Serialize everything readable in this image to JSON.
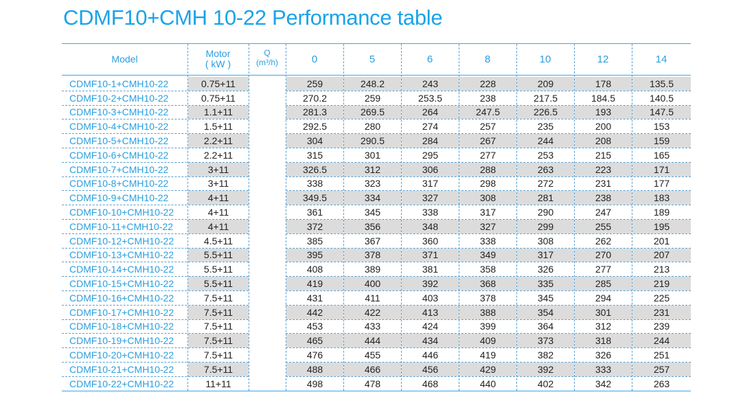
{
  "header": {
    "title": "CDMF10+CMH 10-22 Performance table"
  },
  "table": {
    "columns": {
      "model": "Model",
      "motor": [
        "Motor",
        "( kW )"
      ],
      "q": [
        "Q",
        "(m³/h)"
      ],
      "flows": [
        "0",
        "5",
        "6",
        "8",
        "10",
        "12",
        "14"
      ]
    },
    "rows": [
      [
        "CDMF10-1+CMH10-22",
        "0.75+11",
        "259",
        "248.2",
        "243",
        "228",
        "209",
        "178",
        "135.5"
      ],
      [
        "CDMF10-2+CMH10-22",
        "0.75+11",
        "270.2",
        "259",
        "253.5",
        "238",
        "217.5",
        "184.5",
        "140.5"
      ],
      [
        "CDMF10-3+CMH10-22",
        "1.1+11",
        "281.3",
        "269.5",
        "264",
        "247.5",
        "226.5",
        "193",
        "147.5"
      ],
      [
        "CDMF10-4+CMH10-22",
        "1.5+11",
        "292.5",
        "280",
        "274",
        "257",
        "235",
        "200",
        "153"
      ],
      [
        "CDMF10-5+CMH10-22",
        "2.2+11",
        "304",
        "290.5",
        "284",
        "267",
        "244",
        "208",
        "159"
      ],
      [
        "CDMF10-6+CMH10-22",
        "2.2+11",
        "315",
        "301",
        "295",
        "277",
        "253",
        "215",
        "165"
      ],
      [
        "CDMF10-7+CMH10-22",
        "3+11",
        "326.5",
        "312",
        "306",
        "288",
        "263",
        "223",
        "171"
      ],
      [
        "CDMF10-8+CMH10-22",
        "3+11",
        "338",
        "323",
        "317",
        "298",
        "272",
        "231",
        "177"
      ],
      [
        "CDMF10-9+CMH10-22",
        "4+11",
        "349.5",
        "334",
        "327",
        "308",
        "281",
        "238",
        "183"
      ],
      [
        "CDMF10-10+CMH10-22",
        "4+11",
        "361",
        "345",
        "338",
        "317",
        "290",
        "247",
        "189"
      ],
      [
        "CDMF10-11+CMH10-22",
        "4+11",
        "372",
        "356",
        "348",
        "327",
        "299",
        "255",
        "195"
      ],
      [
        "CDMF10-12+CMH10-22",
        "4.5+11",
        "385",
        "367",
        "360",
        "338",
        "308",
        "262",
        "201"
      ],
      [
        "CDMF10-13+CMH10-22",
        "5.5+11",
        "395",
        "378",
        "371",
        "349",
        "317",
        "270",
        "207"
      ],
      [
        "CDMF10-14+CMH10-22",
        "5.5+11",
        "408",
        "389",
        "381",
        "358",
        "326",
        "277",
        "213"
      ],
      [
        "CDMF10-15+CMH10-22",
        "5.5+11",
        "419",
        "400",
        "392",
        "368",
        "335",
        "285",
        "219"
      ],
      [
        "CDMF10-16+CMH10-22",
        "7.5+11",
        "431",
        "411",
        "403",
        "378",
        "345",
        "294",
        "225"
      ],
      [
        "CDMF10-17+CMH10-22",
        "7.5+11",
        "442",
        "422",
        "413",
        "388",
        "354",
        "301",
        "231"
      ],
      [
        "CDMF10-18+CMH10-22",
        "7.5+11",
        "453",
        "433",
        "424",
        "399",
        "364",
        "312",
        "239"
      ],
      [
        "CDMF10-19+CMH10-22",
        "7.5+11",
        "465",
        "444",
        "434",
        "409",
        "373",
        "318",
        "244"
      ],
      [
        "CDMF10-20+CMH10-22",
        "7.5+11",
        "476",
        "455",
        "446",
        "419",
        "382",
        "326",
        "251"
      ],
      [
        "CDMF10-21+CMH10-22",
        "7.5+11",
        "488",
        "466",
        "456",
        "429",
        "392",
        "333",
        "257"
      ],
      [
        "CDMF10-22+CMH10-22",
        "11+11",
        "498",
        "478",
        "468",
        "440",
        "402",
        "342",
        "263"
      ]
    ]
  }
}
